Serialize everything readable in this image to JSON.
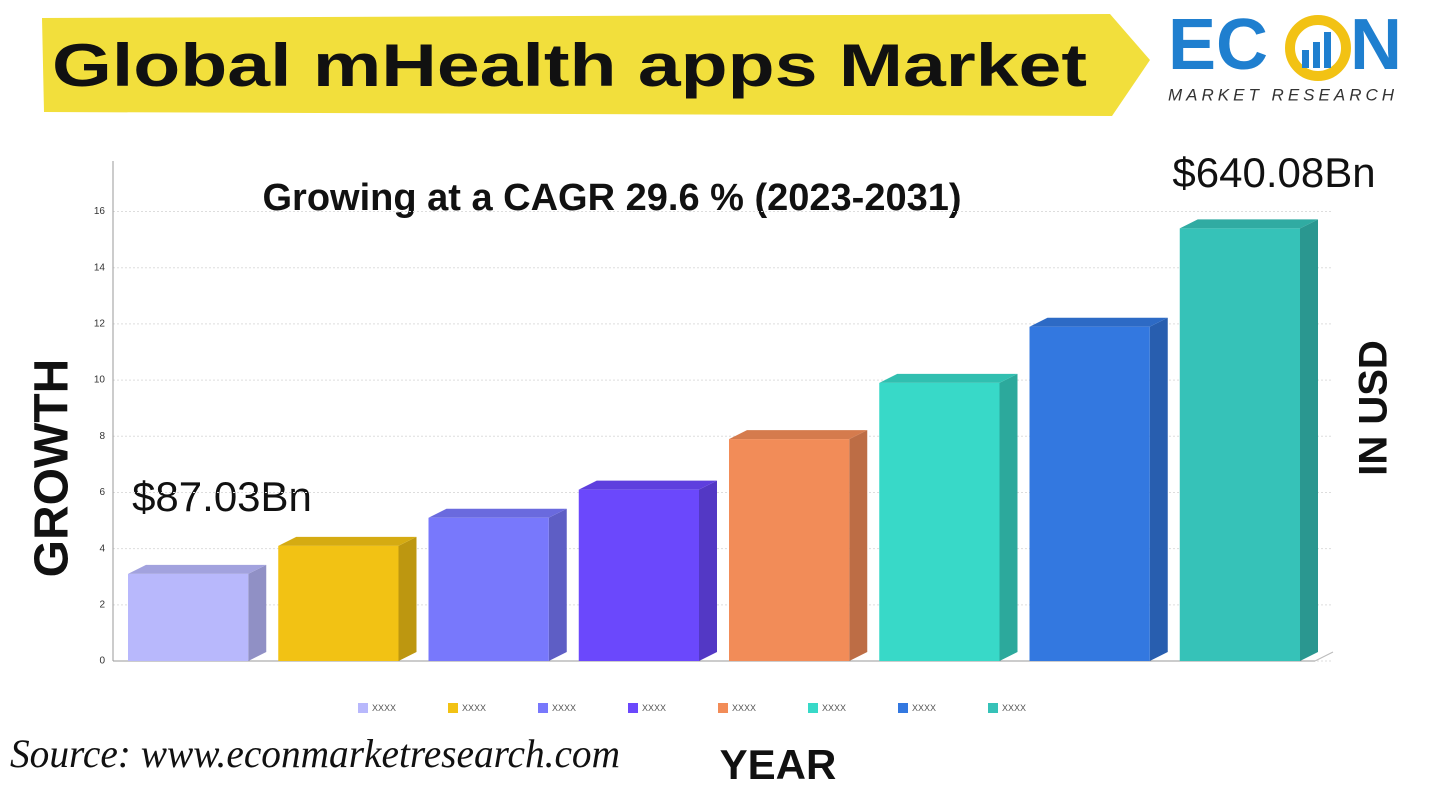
{
  "title": "Global mHealth apps Market",
  "logo": {
    "left": "EC",
    "right": "N",
    "tagline": "MARKET RESEARCH"
  },
  "source": "Source:  www.econmarketresearch.com",
  "chart_data": {
    "type": "bar3d",
    "subtitle": "Growing at a CAGR 29.6 % (2023-2031)",
    "y_label": "GROWTH",
    "y2_label": "IN USD",
    "x_label": "YEAR",
    "annotations": [
      "$87.03Bn",
      "$640.08Bn"
    ],
    "ylim": [
      0,
      17.8
    ],
    "yticks": [
      0,
      2,
      4,
      6,
      8,
      10,
      12,
      14,
      16
    ],
    "grid": true,
    "series": [
      {
        "name": "XXXX",
        "color": "#b8b8fc",
        "values": [
          3.1
        ]
      },
      {
        "name": "XXXX",
        "color": "#f2c214",
        "values": [
          4.1
        ]
      },
      {
        "name": "XXXX",
        "color": "#7878fc",
        "values": [
          5.1
        ]
      },
      {
        "name": "XXXX",
        "color": "#6b48fc",
        "values": [
          6.1
        ]
      },
      {
        "name": "XXXX",
        "color": "#f28c58",
        "values": [
          7.9
        ]
      },
      {
        "name": "XXXX",
        "color": "#38d9c8",
        "values": [
          9.9
        ]
      },
      {
        "name": "XXXX",
        "color": "#3378e0",
        "values": [
          11.9
        ]
      },
      {
        "name": "XXXX",
        "color": "#36c2b8",
        "values": [
          15.4
        ]
      }
    ]
  }
}
